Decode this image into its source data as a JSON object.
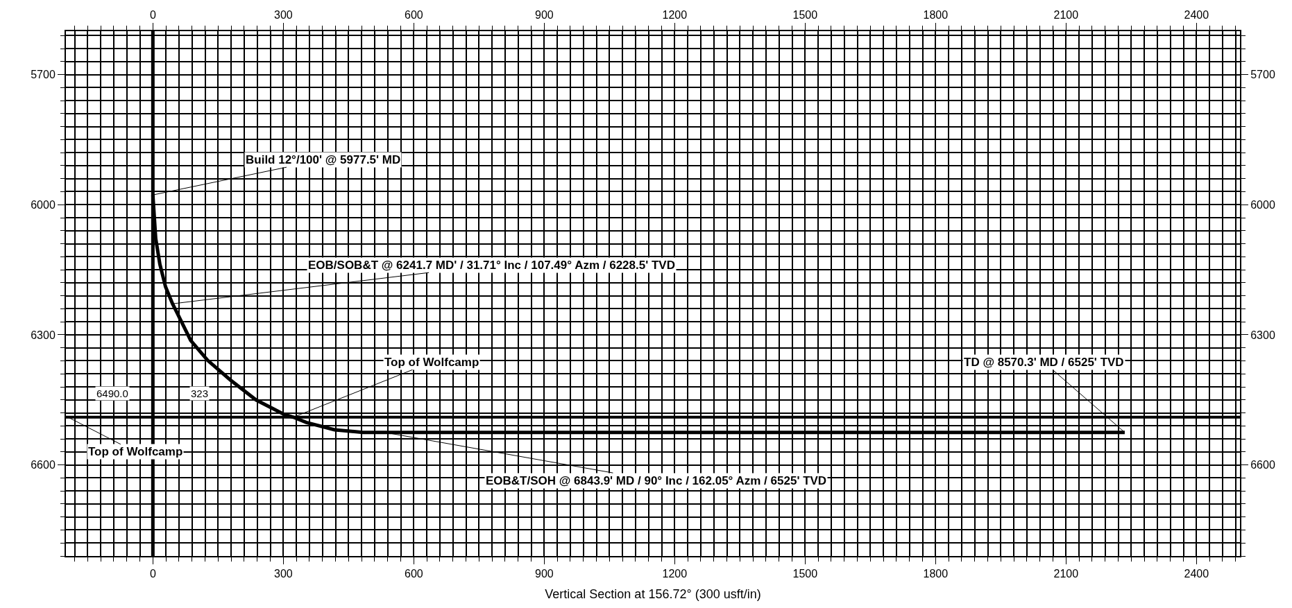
{
  "chart_data": {
    "type": "line",
    "xlabel": "Vertical Section at 156.72° (300 usft/in)",
    "x": [
      0,
      6.5,
      16,
      29,
      45,
      55,
      87,
      126,
      178,
      237,
      301,
      323,
      353,
      418,
      483,
      533,
      600,
      2235
    ],
    "series": [
      {
        "color": "#000000",
        "values": [
          5978,
          6078,
          6137,
          6189,
          6228,
          6248,
          6313,
          6359,
          6404,
          6450,
          6483,
          6490,
          6502,
          6519,
          6525,
          6525,
          6525,
          6525
        ]
      }
    ],
    "xlim": [
      -200,
      2500
    ],
    "xticks": [
      0,
      300,
      600,
      900,
      1200,
      1500,
      1800,
      2100,
      2400
    ],
    "x2lim": [
      -200,
      2500
    ],
    "x2ticks": [
      0,
      300,
      600,
      900,
      1200,
      1500,
      1800,
      2100,
      2400
    ],
    "ylim": [
      6810,
      5600
    ],
    "yticks": [
      5700,
      6000,
      6300,
      6600
    ],
    "y2lim": [
      6810,
      5600
    ],
    "y2ticks": [
      5700,
      6000,
      6300,
      6600
    ],
    "ref_lines": [
      {
        "axis": "y",
        "value": 6490,
        "color": "#000000"
      },
      {
        "axis": "x",
        "value": 0,
        "color": "#000000"
      }
    ],
    "annotations": [
      {
        "text": "Build 12°/100' @ 5977.5' MD",
        "x": 0,
        "y": 5977.5
      },
      {
        "text": "EOB/SOB&T @ 6241.7 MD' / 31.71° Inc / 107.49° Azm / 6228.5' TVD",
        "x": 45,
        "y": 6228.5
      },
      {
        "text": "Top of Wolfcamp",
        "x": 323,
        "y": 6490
      },
      {
        "text": "Top of Wolfcamp",
        "x": -195,
        "y": 6490
      },
      {
        "text": "EOB&T/SOH @ 6843.9' MD / 90° Inc / 162.05° Azm / 6525' TVD",
        "x": 533,
        "y": 6525
      },
      {
        "text": "TD @ 8570.3' MD / 6525' TVD",
        "x": 2235,
        "y": 6525
      },
      "6490.0",
      "323"
    ],
    "grid": true,
    "marker": "none",
    "line_style": "solid"
  }
}
